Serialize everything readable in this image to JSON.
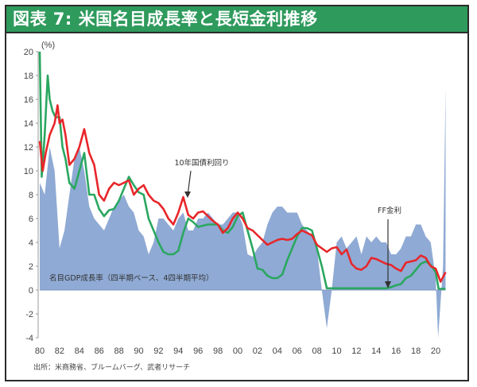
{
  "title": "図表 7: 米国名目成長率と長短金利推移",
  "unit_label": "(%)",
  "source": "出所：米商務省、ブルームバーグ、武者リサーチ",
  "annotations": {
    "treasury": "10年国債利回り",
    "ff": "FF金利",
    "gdp": "名目GDP成長率（四半期ベース、4四半期平均）"
  },
  "colors": {
    "title_bg": "#2e9a5c",
    "gdp_area": "#8faad4",
    "treasury_line": "#e8262a",
    "ff_line": "#2aa760"
  },
  "chart_data": {
    "type": "line",
    "title": "図表 7: 米国名目成長率と長短金利推移",
    "xlabel": "",
    "ylabel": "(%)",
    "xlim": [
      1980,
      2021
    ],
    "ylim": [
      -4,
      20
    ],
    "yticks": [
      20,
      18,
      16,
      14,
      12,
      10,
      8,
      6,
      4,
      2,
      0,
      -2,
      -4
    ],
    "xticks": [
      "80",
      "82",
      "84",
      "86",
      "88",
      "90",
      "92",
      "94",
      "96",
      "98",
      "00",
      "02",
      "04",
      "06",
      "08",
      "10",
      "12",
      "14",
      "16",
      "18",
      "20"
    ],
    "grid": false,
    "series": [
      {
        "name": "名目GDP成長率（四半期ベース、4四半期平均）",
        "type": "area",
        "x": [
          1980,
          1980.5,
          1981,
          1981.5,
          1982,
          1982.5,
          1983,
          1983.5,
          1984,
          1984.5,
          1985,
          1985.5,
          1986,
          1986.5,
          1987,
          1987.5,
          1988,
          1988.5,
          1989,
          1989.5,
          1990,
          1990.5,
          1991,
          1991.5,
          1992,
          1992.5,
          1993,
          1993.5,
          1994,
          1994.5,
          1995,
          1995.5,
          1996,
          1996.5,
          1997,
          1997.5,
          1998,
          1998.5,
          1999,
          1999.5,
          2000,
          2000.5,
          2001,
          2001.5,
          2002,
          2002.5,
          2003,
          2003.5,
          2004,
          2004.5,
          2005,
          2005.5,
          2006,
          2006.5,
          2007,
          2007.5,
          2008,
          2008.5,
          2009,
          2009.5,
          2010,
          2010.5,
          2011,
          2011.5,
          2012,
          2012.5,
          2013,
          2013.5,
          2014,
          2014.5,
          2015,
          2015.5,
          2016,
          2016.5,
          2017,
          2017.5,
          2018,
          2018.5,
          2019,
          2019.5,
          2020,
          2020.25,
          2020.5,
          2020.75,
          2021
        ],
        "values": [
          9,
          8,
          12,
          10,
          3.5,
          5,
          8,
          11,
          12,
          10,
          7,
          6,
          5.5,
          5,
          6,
          7,
          7.5,
          8,
          7,
          6.5,
          5,
          4.5,
          3,
          4,
          6,
          6,
          5.5,
          5,
          6,
          6.5,
          5,
          5,
          6,
          6,
          6.5,
          6,
          5.5,
          5.5,
          6,
          6.5,
          6.5,
          5.5,
          3,
          2.8,
          3.5,
          4,
          5.5,
          6.5,
          7,
          7,
          6.5,
          6.5,
          6.5,
          5.5,
          5,
          4.5,
          3.5,
          0,
          -3.2,
          0,
          4,
          4.5,
          3.5,
          4,
          4.5,
          3,
          4.5,
          4,
          4.5,
          4,
          4,
          3,
          3,
          3.5,
          4.5,
          4.5,
          5.5,
          5.5,
          4.5,
          4,
          1,
          -4,
          -1,
          2,
          17
        ]
      },
      {
        "name": "10年国債利回り",
        "type": "line",
        "x": [
          1980,
          1980.3,
          1980.6,
          1981,
          1981.5,
          1981.8,
          1982,
          1982.3,
          1982.6,
          1983,
          1983.5,
          1984,
          1984.5,
          1985,
          1985.5,
          1986,
          1986.5,
          1987,
          1987.5,
          1988,
          1988.5,
          1989,
          1989.5,
          1990,
          1990.5,
          1991,
          1991.5,
          1992,
          1992.5,
          1993,
          1993.5,
          1994,
          1994.5,
          1995,
          1995.5,
          1996,
          1996.5,
          1997,
          1997.5,
          1998,
          1998.5,
          1999,
          1999.5,
          2000,
          2000.5,
          2001,
          2001.5,
          2002,
          2002.5,
          2003,
          2003.5,
          2004,
          2004.5,
          2005,
          2005.5,
          2006,
          2006.5,
          2007,
          2007.5,
          2008,
          2008.5,
          2009,
          2009.5,
          2010,
          2010.5,
          2011,
          2011.5,
          2012,
          2012.5,
          2013,
          2013.5,
          2014,
          2014.5,
          2015,
          2015.5,
          2016,
          2016.5,
          2017,
          2017.5,
          2018,
          2018.5,
          2019,
          2019.5,
          2020,
          2020.5,
          2021
        ],
        "values": [
          12.5,
          10,
          11.5,
          13,
          14,
          15.5,
          14,
          14.3,
          13,
          10.5,
          11,
          12,
          13.5,
          11.5,
          10.5,
          8,
          7.5,
          8.5,
          9,
          8.8,
          9,
          9.2,
          8,
          8.5,
          8.8,
          8,
          7.5,
          7.3,
          6.8,
          6,
          5.5,
          6.5,
          7.8,
          6.3,
          6,
          6.5,
          6.6,
          6.2,
          5.8,
          5.5,
          4.8,
          5.2,
          6,
          6.5,
          6,
          5.2,
          5,
          4.6,
          4.2,
          3.8,
          4,
          4.2,
          4.3,
          4.2,
          4.3,
          4.7,
          5,
          4.8,
          4.6,
          3.8,
          3.5,
          3.2,
          3.5,
          3.6,
          3,
          3.4,
          2.2,
          1.8,
          1.7,
          2,
          2.7,
          2.6,
          2.4,
          2.2,
          2.1,
          1.8,
          1.6,
          2.3,
          2.4,
          2.5,
          2.9,
          2.7,
          2,
          1.8,
          0.7,
          1.5
        ]
      },
      {
        "name": "FF金利",
        "type": "line",
        "x": [
          1980,
          1980.2,
          1980.5,
          1980.8,
          1981,
          1981.3,
          1981.6,
          1982,
          1982.3,
          1982.6,
          1983,
          1983.5,
          1984,
          1984.5,
          1985,
          1985.5,
          1986,
          1986.5,
          1987,
          1987.5,
          1988,
          1988.5,
          1989,
          1989.5,
          1990,
          1990.5,
          1991,
          1991.5,
          1992,
          1992.5,
          1993,
          1993.5,
          1994,
          1994.5,
          1995,
          1995.5,
          1996,
          1997,
          1998,
          1998.5,
          1999,
          1999.5,
          2000,
          2000.5,
          2001,
          2001.5,
          2002,
          2002.5,
          2003,
          2003.5,
          2004,
          2004.5,
          2005,
          2005.5,
          2006,
          2006.5,
          2007,
          2007.5,
          2008,
          2008.5,
          2009,
          2015,
          2015.5,
          2016,
          2016.5,
          2017,
          2017.5,
          2018,
          2018.5,
          2019,
          2019.5,
          2020,
          2020.3,
          2021
        ],
        "values": [
          20,
          9.5,
          13,
          18,
          16,
          15,
          14.5,
          14.5,
          12,
          11,
          9,
          8.5,
          10,
          11.5,
          8,
          8,
          6.8,
          6.2,
          6.7,
          6.8,
          7.5,
          8.5,
          9.5,
          8.8,
          8.2,
          8,
          6,
          5,
          4,
          3.2,
          3,
          3,
          3.3,
          4.8,
          6,
          5.7,
          5.3,
          5.5,
          5.5,
          5,
          4.8,
          5.3,
          6.2,
          6.5,
          5,
          3.5,
          1.8,
          1.7,
          1.2,
          1,
          1,
          1.3,
          2.5,
          3.5,
          4.5,
          5.2,
          5.2,
          5,
          3.5,
          2,
          0.15,
          0.15,
          0.25,
          0.4,
          0.5,
          1,
          1.2,
          1.7,
          2.2,
          2.4,
          2.1,
          1.5,
          0.1,
          0.1
        ]
      }
    ],
    "annotations": [
      {
        "text": "10年国債利回り",
        "x": 1994.3,
        "y": 7.8,
        "arrow": true
      },
      {
        "text": "FF金利",
        "x": 2015,
        "y": 0.2,
        "arrow": true
      },
      {
        "text": "名目GDP成長率（四半期ベース、4四半期平均）",
        "x": 1981,
        "y": 1
      }
    ]
  }
}
